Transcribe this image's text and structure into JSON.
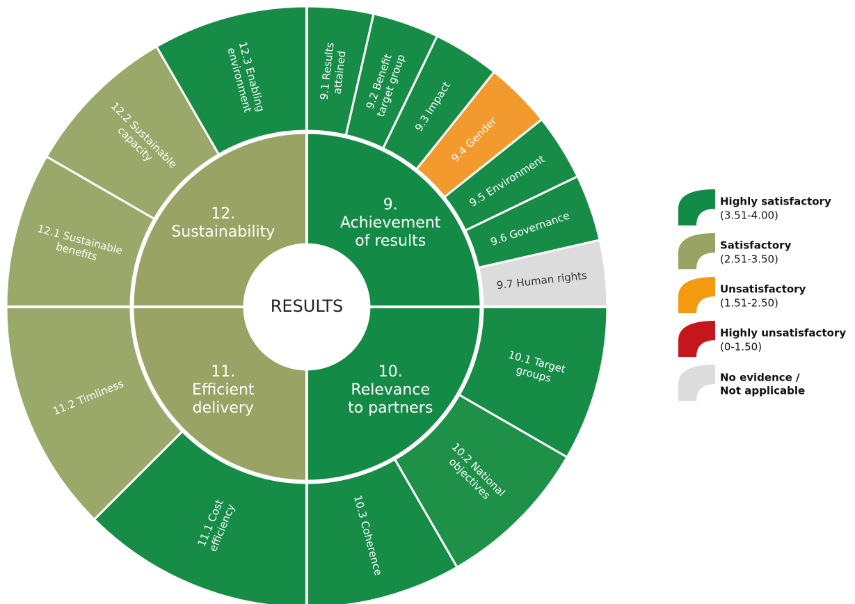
{
  "diagram": {
    "center": "RESULTS",
    "groups": [
      {
        "label": [
          "9.",
          "Achievement",
          "of results"
        ],
        "color": "#138a45",
        "segments": [
          {
            "label": [
              "9.1 Results",
              "attained"
            ],
            "color": "#168c47"
          },
          {
            "label": [
              "9.2 Benefit",
              "target group"
            ],
            "color": "#168c47"
          },
          {
            "label": [
              "9.3 Impact"
            ],
            "color": "#168c47"
          },
          {
            "label": [
              "9.4 Gender"
            ],
            "color": "#f39a2e"
          },
          {
            "label": [
              "9.5 Environment"
            ],
            "color": "#168c47"
          },
          {
            "label": [
              "9.6 Governance"
            ],
            "color": "#168c47"
          },
          {
            "label": [
              "9.7 Human rights"
            ],
            "color": "#dcdcdc"
          }
        ]
      },
      {
        "label": [
          "10.",
          "Relevance",
          "to partners"
        ],
        "color": "#138a45",
        "segments": [
          {
            "label": [
              "10.1 Target",
              "groups"
            ],
            "color": "#168c47"
          },
          {
            "label": [
              "10.2 National",
              "objectives"
            ],
            "color": "#1f9048"
          },
          {
            "label": [
              "10.3 Coherence"
            ],
            "color": "#168c47"
          }
        ]
      },
      {
        "label": [
          "11.",
          "Efficient",
          "delivery"
        ],
        "color": "#99a464",
        "segments": [
          {
            "label": [
              "11.1 Cost",
              "efficiency"
            ],
            "color": "#168c47"
          },
          {
            "label": [
              "11.2 Timliness"
            ],
            "color": "#9aa86a"
          }
        ]
      },
      {
        "label": [
          "12.",
          "Sustainability"
        ],
        "color": "#99a464",
        "segments": [
          {
            "label": [
              "12.1 Sustainable",
              "benefits"
            ],
            "color": "#9aa86a"
          },
          {
            "label": [
              "12.2 Sustainable",
              "capacity"
            ],
            "color": "#9aa86a"
          },
          {
            "label": [
              "12.3 Enabling",
              "environment"
            ],
            "color": "#168c47"
          }
        ]
      }
    ],
    "legend": [
      {
        "label": "Highly satisfactory",
        "range": "(3.51-4.00)",
        "color": "#138a45"
      },
      {
        "label": "Satisfactory",
        "range": "(2.51-3.50)",
        "color": "#99a464"
      },
      {
        "label": "Unsatisfactory",
        "range": "(1.51-2.50)",
        "color": "#f39a11"
      },
      {
        "label": "Highly unsatisfactory",
        "range": "(0-1.50)",
        "color": "#c4161c"
      },
      {
        "label": [
          "No evidence /",
          "Not applicable"
        ],
        "color": "#dcdcdc"
      }
    ]
  }
}
